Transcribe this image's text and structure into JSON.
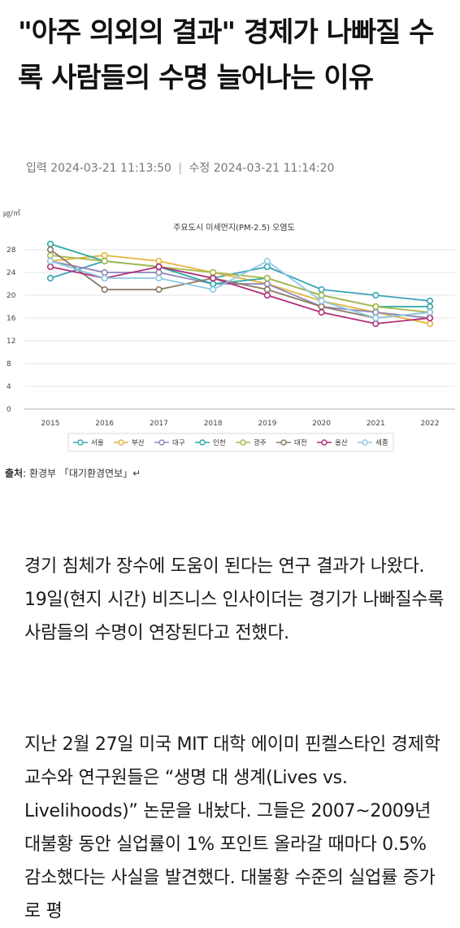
{
  "article": {
    "title": "\"아주 의외의 결과\" 경제가 나빠질 수록 사람들의 수명 늘어나는 이유",
    "published_label": "입력",
    "published": "2024-03-21 11:13:50",
    "modified_label": "수정",
    "modified": "2024-03-21 11:14:20",
    "paragraphs": [
      "경기 침체가 장수에 도움이 된다는 연구 결과가 나왔다. 19일(현지 시간) 비즈니스 인사이더는 경기가 나빠질수록 사람들의 수명이 연장된다고 전했다.",
      "지난 2월 27일 미국 MIT 대학 에이미 핀켈스타인 경제학 교수와 연구원들은 “생명 대 생계(Lives vs. Livelihoods)” 논문을 내놨다. 그들은 2007~2009년 대불황 동안 실업률이 1% 포인트 올라갈 때마다 0.5% 감소했다는 사실을 발견했다. 대불황 수준의 실업률 증가로 평"
    ]
  },
  "figure": {
    "source_label": "출처",
    "source_text": ": 환경부 「대기환경연보」↵"
  },
  "chart_data": {
    "type": "line",
    "title": "주요도시 미세먼지(PM-2.5) 오염도",
    "ylabel": "㎍/㎥",
    "xlabel": "",
    "x": [
      "2015",
      "2016",
      "2017",
      "2018",
      "2019",
      "2020",
      "2021",
      "2022"
    ],
    "ylim": [
      0,
      28
    ],
    "yticks": [
      0,
      4,
      8,
      12,
      16,
      20,
      24,
      28
    ],
    "grid": true,
    "legend_position": "bottom",
    "series": [
      {
        "name": "서울",
        "color": "#3aa3b8",
        "values": [
          23,
          26,
          25,
          23,
          25,
          21,
          20,
          19
        ]
      },
      {
        "name": "부산",
        "color": "#e6b43c",
        "values": [
          26,
          27,
          26,
          24,
          22,
          19,
          17,
          15
        ]
      },
      {
        "name": "대구",
        "color": "#8e84b8",
        "values": [
          26,
          24,
          24,
          22,
          22,
          18,
          17,
          16
        ]
      },
      {
        "name": "인천",
        "color": "#29a9a0",
        "values": [
          29,
          26,
          25,
          22,
          23,
          20,
          18,
          18
        ]
      },
      {
        "name": "광주",
        "color": "#a8b84a",
        "values": [
          27,
          26,
          25,
          24,
          23,
          20,
          18,
          17
        ]
      },
      {
        "name": "대전",
        "color": "#8a7a64",
        "values": [
          28,
          21,
          21,
          23,
          21,
          18,
          16,
          17
        ]
      },
      {
        "name": "울산",
        "color": "#b02f7a",
        "values": [
          25,
          23,
          25,
          23,
          20,
          17,
          15,
          16
        ]
      },
      {
        "name": "세종",
        "color": "#8ec9e6",
        "values": [
          26,
          23,
          23,
          21,
          26,
          19,
          16,
          17
        ]
      }
    ]
  }
}
